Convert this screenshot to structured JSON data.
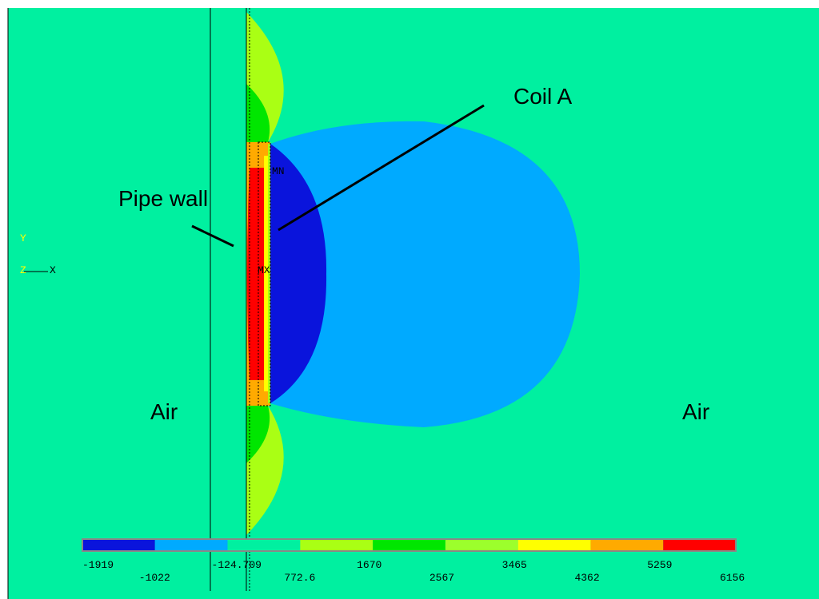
{
  "annotations": {
    "pipe_wall": "Pipe wall",
    "coil": "Coil A",
    "air_left": "Air",
    "air_right": "Air"
  },
  "axes": {
    "y": "Y",
    "x": "X",
    "z": "Z"
  },
  "markers": {
    "min": "MN",
    "max": "MX"
  },
  "legend": {
    "labels": [
      "-1919",
      "-1022",
      "-124.709",
      "772.6",
      "1670",
      "2567",
      "3465",
      "4362",
      "5259",
      "6156"
    ],
    "colors": [
      "#0a14dc",
      "#00aaff",
      "#00f0a0",
      "#aaff14",
      "#00e600",
      "#9cff2c",
      "#ffff00",
      "#ffaa00",
      "#ff0000"
    ]
  }
}
